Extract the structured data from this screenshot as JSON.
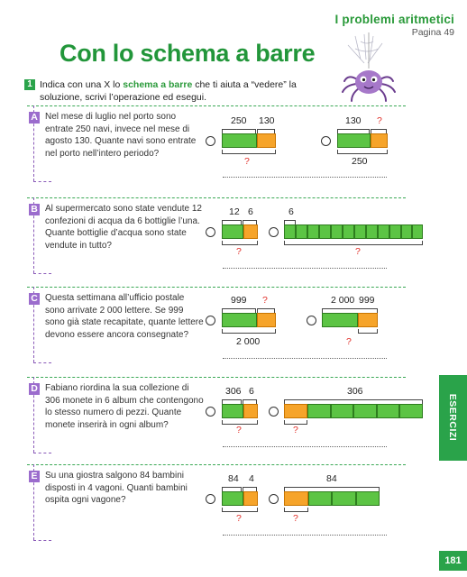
{
  "header": {
    "section": "I problemi aritmetici",
    "page": "Pagina 49"
  },
  "title": "Con lo schema a barre",
  "instruction": {
    "number": "1",
    "part1": "Indica con una X lo ",
    "highlight": "schema a barre",
    "part2": " che ti aiuta a “vedere” la soluzione, scrivi l’operazione ed esegui."
  },
  "exercises": [
    {
      "letter": "A",
      "text": "Nel mese di luglio nel porto sono entrate 250 navi, invece nel mese di agosto 130. Quante navi sono entrate nel porto nell’intero periodo?",
      "scheme1": {
        "top": [
          "250",
          "130"
        ],
        "bottom": [
          "?"
        ]
      },
      "scheme2": {
        "top": [
          "130",
          "?"
        ],
        "bottom": [
          "250"
        ]
      }
    },
    {
      "letter": "B",
      "text": "Al supermercato sono state vendute 12 confezioni di acqua da 6 bottiglie l’una. Quante bottiglie d’acqua sono state vendute in tutto?",
      "scheme1": {
        "top": [
          "12",
          "6"
        ],
        "bottom": [
          "?"
        ]
      },
      "scheme2": {
        "top": [
          "6"
        ],
        "bottom": [
          "?"
        ]
      }
    },
    {
      "letter": "C",
      "text": "Questa settimana all’ufficio postale sono arrivate 2 000 lettere. Se 999 sono già state recapitate, quante lettere devono essere ancora consegnate?",
      "scheme1": {
        "top": [
          "999",
          "?"
        ],
        "bottom": [
          "2 000"
        ]
      },
      "scheme2": {
        "top": [
          "2 000",
          "999"
        ],
        "bottom": [
          "?"
        ]
      }
    },
    {
      "letter": "D",
      "text": "Fabiano riordina la sua collezione di 306 monete in 6 album che contengono lo stesso numero di pezzi. Quante monete inserirà in ogni album?",
      "scheme1": {
        "top": [
          "306",
          "6"
        ],
        "bottom": [
          "?"
        ]
      },
      "scheme2": {
        "top": [
          "306"
        ],
        "bottom": [
          "?"
        ]
      }
    },
    {
      "letter": "E",
      "text": "Su una giostra salgono 84 bambini disposti in 4 vagoni. Quanti bambini ospita ogni vagone?",
      "scheme1": {
        "top": [
          "84",
          "4"
        ],
        "bottom": [
          "?"
        ]
      },
      "scheme2": {
        "top": [
          "84"
        ],
        "bottom": [
          "?"
        ]
      }
    }
  ],
  "side_tab": "ESERCIZI",
  "page_number": "181",
  "colors": {
    "green": "#2aa34a",
    "bar_green": "#5cc444",
    "bar_orange": "#f6a42a",
    "purple": "#9b6ccd",
    "question": "#e0302a"
  }
}
